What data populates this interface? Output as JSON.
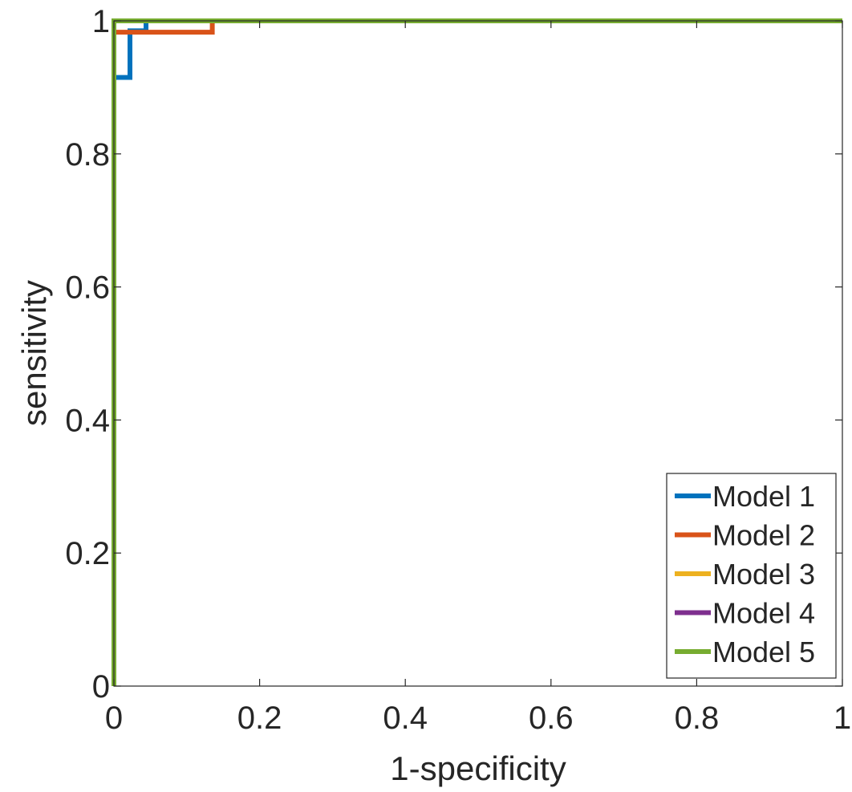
{
  "chart_data": {
    "type": "line",
    "title": "",
    "xlabel": "1-specificity",
    "ylabel": "sensitivity",
    "xlim": [
      0,
      1
    ],
    "ylim": [
      0,
      1
    ],
    "xticks": [
      0,
      0.2,
      0.4,
      0.6,
      0.8,
      1
    ],
    "yticks": [
      0,
      0.2,
      0.4,
      0.6,
      0.8,
      1
    ],
    "xtick_labels": [
      "0",
      "0.2",
      "0.4",
      "0.6",
      "0.8",
      "1"
    ],
    "ytick_labels": [
      "0",
      "0.2",
      "0.4",
      "0.6",
      "0.8",
      "1"
    ],
    "grid": false,
    "legend_position": "bottom-right",
    "series": [
      {
        "name": "Model 1",
        "color": "#0072BD",
        "x": [
          0,
          0,
          0.022,
          0.022,
          0.044,
          0.044,
          1
        ],
        "y": [
          0,
          0.915,
          0.915,
          0.985,
          0.985,
          1,
          1
        ]
      },
      {
        "name": "Model 2",
        "color": "#D95319",
        "x": [
          0,
          0,
          0.135,
          0.135,
          1
        ],
        "y": [
          0,
          0.983,
          0.983,
          1,
          1
        ]
      },
      {
        "name": "Model 3",
        "color": "#EDB120",
        "x": [
          0,
          0,
          1
        ],
        "y": [
          0,
          1,
          1
        ]
      },
      {
        "name": "Model 4",
        "color": "#7E2F8E",
        "x": [
          0,
          0,
          1
        ],
        "y": [
          0,
          1,
          1
        ]
      },
      {
        "name": "Model 5",
        "color": "#77AC30",
        "x": [
          0,
          0,
          1
        ],
        "y": [
          0,
          1,
          1
        ]
      }
    ]
  }
}
